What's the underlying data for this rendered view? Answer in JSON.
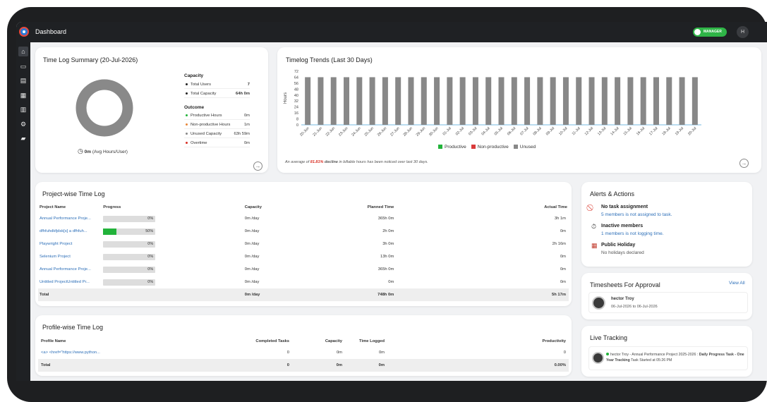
{
  "header": {
    "title": "Dashboard",
    "role_label": "MANAGER",
    "avatar_initial": "H"
  },
  "sidebar": {
    "items": [
      {
        "icon": "home-icon",
        "glyph": "⌂"
      },
      {
        "icon": "devices-icon",
        "glyph": "▭"
      },
      {
        "icon": "timesheet-icon",
        "glyph": "▤"
      },
      {
        "icon": "calendar-add-icon",
        "glyph": "▦"
      },
      {
        "icon": "report-icon",
        "glyph": "▥"
      },
      {
        "icon": "settings-icon",
        "glyph": "⚙"
      },
      {
        "icon": "folder-icon",
        "glyph": "▰"
      }
    ]
  },
  "summary": {
    "title": "Time Log Summary (20-Jul-2026)",
    "avg_value": "0m",
    "avg_label": "(Avg Hours/User)",
    "capacity_heading": "Capacity",
    "capacity": [
      {
        "label": "Total Users",
        "value": "7"
      },
      {
        "label": "Total Capacity",
        "value": "64h 0m"
      }
    ],
    "outcome_heading": "Outcome",
    "outcome": [
      {
        "label": "Productive Hours",
        "value": "0m",
        "color": "#22b33a"
      },
      {
        "label": "Non-productive Hours",
        "value": "1m",
        "color": "#e8873a"
      },
      {
        "label": "Unused Capacity",
        "value": "63h 59m",
        "color": "#888888"
      },
      {
        "label": "Overtime",
        "value": "0m",
        "color": "#d93025"
      }
    ],
    "donut_color": "#898989"
  },
  "trends": {
    "title": "Timelog Trends (Last 30 Days)",
    "note_prefix": "An average of ",
    "note_highlight": "81.81%",
    "note_bold": " decline",
    "note_suffix": " in billable hours has been noticed over last 30 days.",
    "legend": [
      {
        "label": "Productive",
        "color": "#22b33a"
      },
      {
        "label": "Non-productive",
        "color": "#d93a3a"
      },
      {
        "label": "Unused",
        "color": "#888888"
      }
    ]
  },
  "chart_data": {
    "type": "bar",
    "title": "Timelog Trends (Last 30 Days)",
    "ylabel": "Hours",
    "ylim": [
      0,
      72
    ],
    "yticks": [
      0,
      8,
      16,
      24,
      32,
      40,
      48,
      56,
      64,
      72
    ],
    "categories": [
      "20-Jun",
      "21-Jun",
      "22-Jun",
      "23-Jun",
      "24-Jun",
      "25-Jun",
      "26-Jun",
      "27-Jun",
      "28-Jun",
      "29-Jun",
      "30-Jun",
      "01-Jul",
      "02-Jul",
      "03-Jul",
      "04-Jul",
      "05-Jul",
      "06-Jul",
      "07-Jul",
      "08-Jul",
      "09-Jul",
      "10-Jul",
      "11-Jul",
      "12-Jul",
      "13-Jul",
      "14-Jul",
      "15-Jul",
      "16-Jul",
      "17-Jul",
      "18-Jul",
      "19-Jul",
      "20-Jul"
    ],
    "series": [
      {
        "name": "Productive",
        "color": "#22b33a",
        "values": [
          0,
          0,
          0,
          0,
          0,
          0,
          0,
          0,
          0,
          0,
          0,
          0,
          0,
          0,
          0,
          0,
          0,
          0,
          0,
          0,
          0,
          0,
          0,
          0,
          0,
          0,
          0,
          0,
          0,
          0,
          0
        ]
      },
      {
        "name": "Non-productive",
        "color": "#d93a3a",
        "values": [
          0,
          0,
          0,
          0,
          0,
          0,
          0,
          0,
          0,
          0,
          0,
          0,
          0,
          0,
          0,
          0,
          0,
          0,
          0,
          0,
          0,
          0,
          0,
          0,
          0,
          0,
          0,
          0,
          0,
          0,
          0
        ]
      },
      {
        "name": "Unused",
        "color": "#888888",
        "values": [
          64,
          64,
          64,
          64,
          64,
          64,
          64,
          64,
          64,
          64,
          64,
          64,
          64,
          64,
          64,
          64,
          64,
          64,
          64,
          64,
          64,
          64,
          64,
          64,
          64,
          64,
          64,
          64,
          64,
          64,
          64
        ]
      }
    ],
    "legend": "bottom"
  },
  "projects": {
    "title": "Project-wise Time Log",
    "columns": [
      "Project Name",
      "Progress",
      "Capacity",
      "Planned Time",
      "Actual Time"
    ],
    "rows": [
      {
        "name": "Annual Performance Proje...",
        "progress": 0,
        "progress_label": "0%",
        "capacity": "0m /day",
        "planned": "365h 0m",
        "actual": "3h 1m"
      },
      {
        "name": "dfhfuhdkfjdsk[s] a dfhfuh...",
        "progress": 50,
        "progress_label": "50%",
        "capacity": "0m /day",
        "planned": "2h 0m",
        "actual": "0m"
      },
      {
        "name": "Playwright Project",
        "progress": 0,
        "progress_label": "0%",
        "capacity": "0m /day",
        "planned": "3h 0m",
        "actual": "2h 16m"
      },
      {
        "name": "Selenium Project",
        "progress": 0,
        "progress_label": "0%",
        "capacity": "0m /day",
        "planned": "13h 0m",
        "actual": "0m"
      },
      {
        "name": "Annual Performance Proje...",
        "progress": 0,
        "progress_label": "0%",
        "capacity": "0m /day",
        "planned": "365h 0m",
        "actual": "0m"
      },
      {
        "name": "Untitled ProjectUntitled Pr...",
        "progress": 0,
        "progress_label": "0%",
        "capacity": "0m /day",
        "planned": "0m",
        "actual": "0m"
      }
    ],
    "total": {
      "label": "Total",
      "capacity": "0m /day",
      "planned": "748h 0m",
      "actual": "5h 17m"
    }
  },
  "profiles": {
    "title": "Profile-wise Time Log",
    "columns": [
      "Profile Name",
      "Completed Tasks",
      "Capacity",
      "Time Logged",
      "Productivity"
    ],
    "rows": [
      {
        "name": "<a> <href=\"https://www.python...",
        "completed": "0",
        "capacity": "0m",
        "logged": "0m",
        "productivity": "0"
      }
    ],
    "total": {
      "label": "Total",
      "completed": "0",
      "capacity": "0m",
      "logged": "0m",
      "productivity": "0.00%"
    }
  },
  "alerts": {
    "title": "Alerts & Actions",
    "items": [
      {
        "icon": "no-entry-icon",
        "glyph": "⃠",
        "title": "No task assignment",
        "sub": "5 members is not assigned to task."
      },
      {
        "icon": "stopwatch-icon",
        "glyph": "⏱",
        "title": "Inactive members",
        "sub": "1 members is not logging time."
      },
      {
        "icon": "calendar-icon",
        "glyph": "▦",
        "title": "Public Holiday",
        "sub": "No holidays declared"
      }
    ]
  },
  "approvals": {
    "title": "Timesheets For Approval",
    "view_all": "View All",
    "items": [
      {
        "name": "hector Troy",
        "range": "06-Jul-2026 to 06-Jul-2026"
      }
    ]
  },
  "tracking": {
    "title": "Live Tracking",
    "items": [
      {
        "name": "hector Troy",
        "project": " - Annual Performance Project 2025-2026 : ",
        "task": "Daily Progress Task - One Year Tracking",
        "started": " Task Started at 05:26 PM"
      }
    ]
  }
}
